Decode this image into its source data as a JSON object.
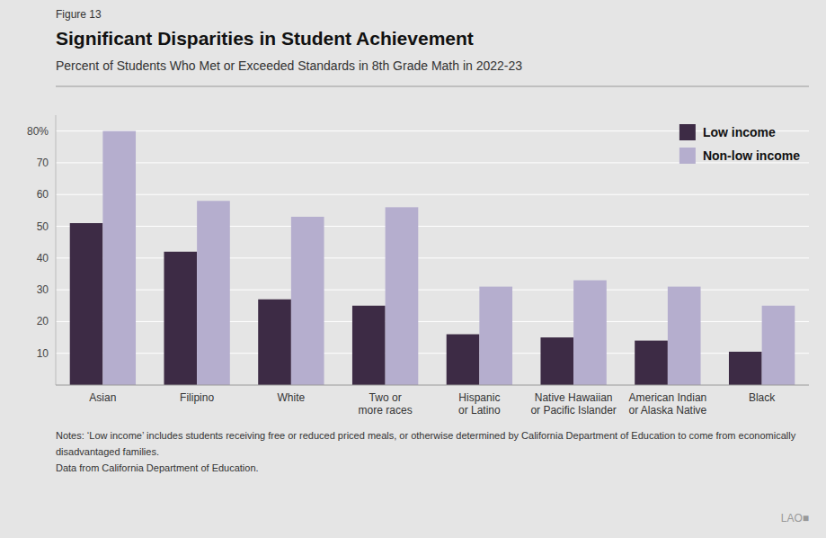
{
  "chart_data": {
    "type": "bar",
    "figure_label": "Figure 13",
    "title": "Significant Disparities in Student Achievement",
    "subtitle": "Percent of Students Who Met or Exceeded Standards in 8th Grade Math in 2022-23",
    "categories": [
      "Asian",
      "Filipino",
      "White",
      "Two or\nmore races",
      "Hispanic\nor Latino",
      "Native Hawaiian\nor Pacific Islander",
      "American Indian\nor Alaska Native",
      "Black"
    ],
    "series": [
      {
        "name": "Low income",
        "color": "#3d2b45",
        "values": [
          51,
          42,
          27,
          25,
          16,
          15,
          14,
          10.5
        ]
      },
      {
        "name": "Non-low income",
        "color": "#b5aece",
        "values": [
          80,
          58,
          53,
          56,
          31,
          33,
          31,
          25
        ]
      }
    ],
    "ylim": [
      0,
      85
    ],
    "yticks": [
      10,
      20,
      30,
      40,
      50,
      60,
      70,
      {
        "value": 80,
        "label": "80%"
      }
    ],
    "grid": true,
    "legend": "upper right",
    "notes": [
      "Notes: ‘Low income’ includes students receiving free or reduced priced meals, or otherwise determined by California Department of Education to come from economically",
      "disadvantaged families.",
      "Data from California Department of Education."
    ],
    "logo": "LAO■"
  }
}
